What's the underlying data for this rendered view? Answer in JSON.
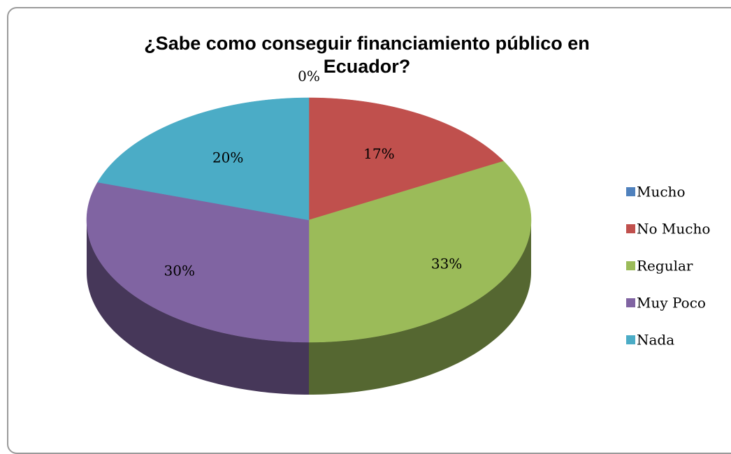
{
  "chart_data": {
    "type": "pie",
    "title": "¿Sabe como conseguir financiamiento público en Ecuador?",
    "categories": [
      "Mucho",
      "No Mucho",
      "Regular",
      "Muy Poco",
      "Nada"
    ],
    "values": [
      0,
      17,
      33,
      30,
      20
    ],
    "value_labels": [
      "0%",
      "17%",
      "33%",
      "30%",
      "20%"
    ],
    "colors": [
      "#4f81bd",
      "#c0504d",
      "#9bbb59",
      "#8064a2",
      "#4bacc6"
    ],
    "legend": "right"
  }
}
